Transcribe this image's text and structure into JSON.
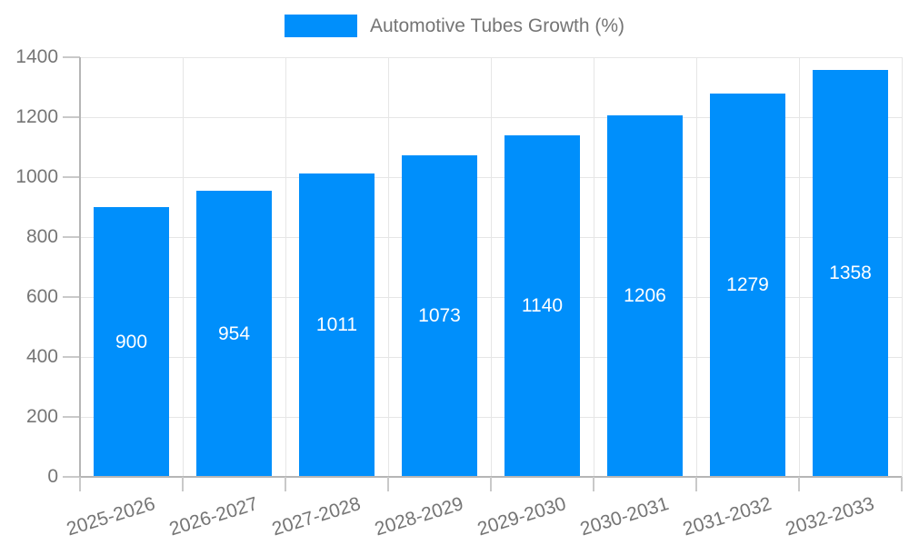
{
  "chart_data": {
    "type": "bar",
    "title": "Automotive Tubes Growth (%)",
    "categories": [
      "2025-2026",
      "2026-2027",
      "2027-2028",
      "2028-2029",
      "2029-2030",
      "2030-2031",
      "2031-2032",
      "2032-2033"
    ],
    "values": [
      900,
      954,
      1011,
      1073,
      1140,
      1206,
      1279,
      1358
    ],
    "series": [
      {
        "name": "Automotive Tubes Growth (%)",
        "values": [
          900,
          954,
          1011,
          1073,
          1140,
          1206,
          1279,
          1358
        ]
      }
    ],
    "xlabel": "",
    "ylabel": "",
    "ylim": [
      0,
      1400
    ],
    "ytick_step": 200,
    "yticks": [
      0,
      200,
      400,
      600,
      800,
      1000,
      1200,
      1400
    ],
    "grid": true,
    "legend_position": "top",
    "x_label_rotation_deg": -17,
    "colors": {
      "bar": "#008FFB",
      "bar_label": "#ffffff",
      "axis_text": "#757575",
      "grid_line": "#e6e6e6",
      "axis_line": "#b6b6b6",
      "tick": "#c9c9c9",
      "background": "#ffffff"
    }
  }
}
